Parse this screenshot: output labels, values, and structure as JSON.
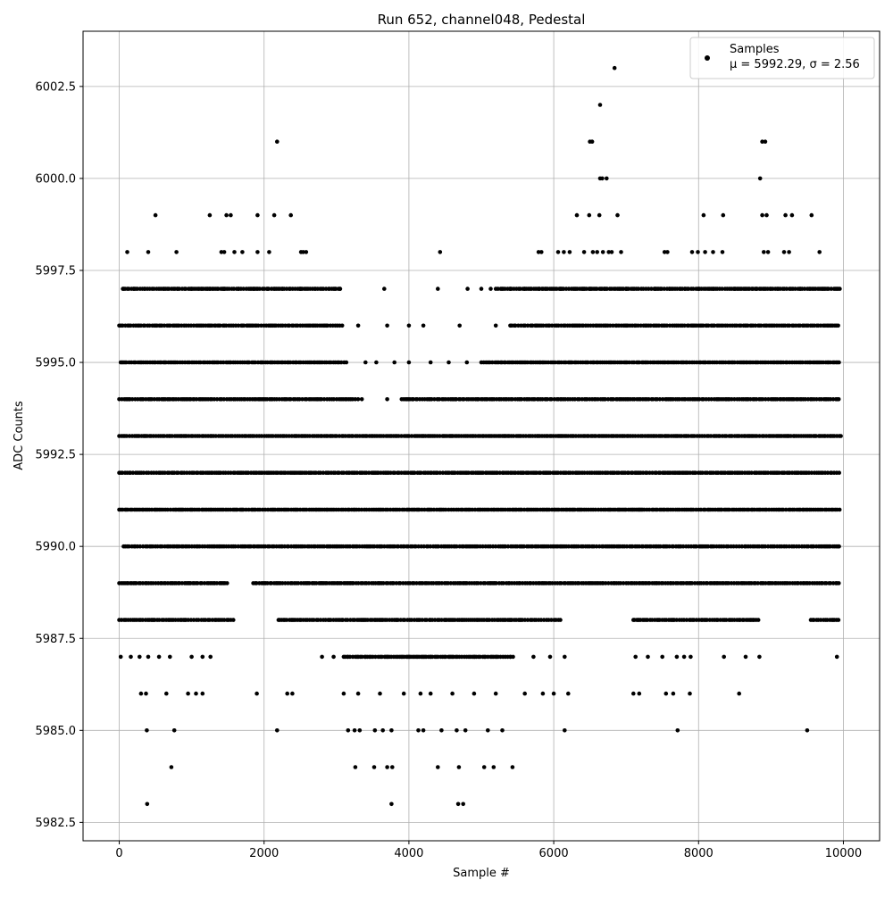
{
  "chart_data": {
    "type": "scatter",
    "title": "Run 652, channel048, Pedestal",
    "xlabel": "Sample #",
    "ylabel": "ADC Counts",
    "xlim": [
      -500,
      10500
    ],
    "ylim": [
      5982.0,
      6004.0
    ],
    "xticks": [
      0,
      2000,
      4000,
      6000,
      8000,
      10000
    ],
    "yticks": [
      5982.5,
      5985.0,
      5987.5,
      5990.0,
      5992.5,
      5995.0,
      5997.5,
      6000.0,
      6002.5
    ],
    "xtick_labels": [
      "0",
      "2000",
      "4000",
      "6000",
      "8000",
      "10000"
    ],
    "ytick_labels": [
      "5982.5",
      "5985.0",
      "5987.5",
      "5990.0",
      "5992.5",
      "5995.0",
      "5997.5",
      "6000.0",
      "6002.5"
    ],
    "grid": true,
    "legend": {
      "position": "top-right",
      "label": "Samples",
      "stats": "μ = 5992.29, σ = 2.56"
    },
    "marker_color": "#000000",
    "series": [
      {
        "name": "Samples",
        "points": [
          [
            500,
            5999
          ],
          [
            1250,
            5999
          ],
          [
            1480,
            5999
          ],
          [
            1540,
            5999
          ],
          [
            1910,
            5999
          ],
          [
            2140,
            5999
          ],
          [
            2370,
            5999
          ],
          [
            6320,
            5999
          ],
          [
            6490,
            5999
          ],
          [
            6630,
            5999
          ],
          [
            6880,
            5999
          ],
          [
            8070,
            5999
          ],
          [
            8340,
            5999
          ],
          [
            8880,
            5999
          ],
          [
            8940,
            5999
          ],
          [
            9200,
            5999
          ],
          [
            9290,
            5999
          ],
          [
            9560,
            5999
          ],
          [
            2180,
            6001
          ],
          [
            6500,
            6001
          ],
          [
            6530,
            6001
          ],
          [
            8880,
            6001
          ],
          [
            8920,
            6001
          ],
          [
            6640,
            6002
          ],
          [
            6840,
            6003
          ],
          [
            6640,
            6000
          ],
          [
            6670,
            6000
          ],
          [
            6730,
            6000
          ],
          [
            8850,
            6000
          ],
          [
            110,
            5998
          ],
          [
            400,
            5998
          ],
          [
            790,
            5998
          ],
          [
            1410,
            5998
          ],
          [
            1450,
            5998
          ],
          [
            1590,
            5998
          ],
          [
            1700,
            5998
          ],
          [
            1910,
            5998
          ],
          [
            2070,
            5998
          ],
          [
            2510,
            5998
          ],
          [
            2540,
            5998
          ],
          [
            2580,
            5998
          ],
          [
            4430,
            5998
          ],
          [
            5790,
            5998
          ],
          [
            5830,
            5998
          ],
          [
            6060,
            5998
          ],
          [
            6140,
            5998
          ],
          [
            6220,
            5998
          ],
          [
            6420,
            5998
          ],
          [
            6540,
            5998
          ],
          [
            6600,
            5998
          ],
          [
            6680,
            5998
          ],
          [
            6760,
            5998
          ],
          [
            6800,
            5998
          ],
          [
            6930,
            5998
          ],
          [
            7530,
            5998
          ],
          [
            7570,
            5998
          ],
          [
            7910,
            5998
          ],
          [
            7990,
            5998
          ],
          [
            8090,
            5998
          ],
          [
            8200,
            5998
          ],
          [
            8330,
            5998
          ],
          [
            8900,
            5998
          ],
          [
            8960,
            5998
          ],
          [
            9180,
            5998
          ],
          [
            9250,
            5998
          ],
          [
            9670,
            5998
          ],
          [
            385,
            5983
          ],
          [
            3760,
            5983
          ],
          [
            4680,
            5983
          ],
          [
            4750,
            5983
          ],
          [
            720,
            5984
          ],
          [
            3260,
            5984
          ],
          [
            3520,
            5984
          ],
          [
            3700,
            5984
          ],
          [
            3770,
            5984
          ],
          [
            4400,
            5984
          ],
          [
            4690,
            5984
          ],
          [
            5040,
            5984
          ],
          [
            5170,
            5984
          ],
          [
            5430,
            5984
          ],
          [
            380,
            5985
          ],
          [
            760,
            5985
          ],
          [
            2180,
            5985
          ],
          [
            3160,
            5985
          ],
          [
            3250,
            5985
          ],
          [
            3320,
            5985
          ],
          [
            3530,
            5985
          ],
          [
            3640,
            5985
          ],
          [
            3760,
            5985
          ],
          [
            4130,
            5985
          ],
          [
            4200,
            5985
          ],
          [
            4450,
            5985
          ],
          [
            4660,
            5985
          ],
          [
            4780,
            5985
          ],
          [
            5090,
            5985
          ],
          [
            5290,
            5985
          ],
          [
            6150,
            5985
          ],
          [
            7710,
            5985
          ],
          [
            9500,
            5985
          ],
          [
            300,
            5986
          ],
          [
            370,
            5986
          ],
          [
            650,
            5986
          ],
          [
            950,
            5986
          ],
          [
            1060,
            5986
          ],
          [
            1150,
            5986
          ],
          [
            1900,
            5986
          ],
          [
            2320,
            5986
          ],
          [
            2390,
            5986
          ],
          [
            3100,
            5986
          ],
          [
            3300,
            5986
          ],
          [
            3600,
            5986
          ],
          [
            3930,
            5986
          ],
          [
            4160,
            5986
          ],
          [
            4300,
            5986
          ],
          [
            4600,
            5986
          ],
          [
            4900,
            5986
          ],
          [
            5200,
            5986
          ],
          [
            5600,
            5986
          ],
          [
            5850,
            5986
          ],
          [
            6000,
            5986
          ],
          [
            6200,
            5986
          ],
          [
            7100,
            5986
          ],
          [
            7180,
            5986
          ],
          [
            7550,
            5986
          ],
          [
            7650,
            5986
          ],
          [
            7880,
            5986
          ],
          [
            8560,
            5986
          ],
          [
            20,
            5987
          ],
          [
            160,
            5987
          ],
          [
            280,
            5987
          ],
          [
            400,
            5987
          ],
          [
            550,
            5987
          ],
          [
            700,
            5987
          ],
          [
            1000,
            5987
          ],
          [
            1150,
            5987
          ],
          [
            1260,
            5987
          ],
          [
            2800,
            5987
          ],
          [
            2960,
            5987
          ],
          [
            3150,
            5987
          ],
          [
            3400,
            5987
          ],
          [
            3700,
            5987
          ],
          [
            4000,
            5987
          ],
          [
            4300,
            5987
          ],
          [
            4600,
            5987
          ],
          [
            4900,
            5987
          ],
          [
            5200,
            5987
          ],
          [
            5400,
            5987
          ],
          [
            5720,
            5987
          ],
          [
            5950,
            5987
          ],
          [
            6150,
            5987
          ],
          [
            7130,
            5987
          ],
          [
            7300,
            5987
          ],
          [
            7500,
            5987
          ],
          [
            7700,
            5987
          ],
          [
            7800,
            5987
          ],
          [
            7890,
            5987
          ],
          [
            8350,
            5987
          ],
          [
            8650,
            5987
          ],
          [
            8840,
            5987
          ],
          [
            9910,
            5987
          ],
          [
            7810,
            5997
          ],
          [
            3660,
            5997
          ],
          [
            4400,
            5997
          ],
          [
            4810,
            5997
          ],
          [
            5130,
            5997
          ],
          [
            5400,
            5997
          ],
          [
            5800,
            5997
          ],
          [
            6100,
            5997
          ],
          [
            6400,
            5997
          ],
          [
            6700,
            5997
          ],
          [
            7000,
            5997
          ],
          [
            7400,
            5997
          ],
          [
            7600,
            5997
          ],
          [
            8200,
            5997
          ],
          [
            8500,
            5997
          ],
          [
            8800,
            5997
          ],
          [
            9100,
            5997
          ],
          [
            9400,
            5997
          ],
          [
            9700,
            5997
          ],
          [
            9950,
            5997
          ],
          [
            50,
            5997
          ],
          [
            200,
            5997
          ],
          [
            350,
            5997
          ],
          [
            620,
            5997
          ],
          [
            800,
            5997
          ],
          [
            1000,
            5997
          ],
          [
            1250,
            5997
          ],
          [
            1450,
            5997
          ],
          [
            1650,
            5997
          ],
          [
            1850,
            5997
          ],
          [
            2050,
            5997
          ],
          [
            2250,
            5997
          ],
          [
            2500,
            5997
          ],
          [
            2700,
            5997
          ],
          [
            2900,
            5997
          ],
          [
            3050,
            5997
          ],
          [
            5000,
            5997
          ],
          [
            5600,
            5997
          ],
          [
            6500,
            5997
          ],
          [
            8000,
            5997
          ],
          [
            9000,
            5997
          ],
          [
            3300,
            5996
          ],
          [
            3700,
            5996
          ],
          [
            4000,
            5996
          ],
          [
            4200,
            5996
          ],
          [
            4700,
            5996
          ],
          [
            5200,
            5996
          ],
          [
            5700,
            5996
          ],
          [
            3400,
            5995
          ],
          [
            3550,
            5995
          ],
          [
            3800,
            5995
          ],
          [
            4000,
            5995
          ],
          [
            4300,
            5995
          ],
          [
            4550,
            5995
          ],
          [
            4800,
            5995
          ],
          [
            3350,
            5994
          ],
          [
            3700,
            5994
          ],
          [
            4050,
            5994
          ],
          [
            4400,
            5994
          ],
          [
            4650,
            5994
          ],
          [
            4950,
            5994
          ],
          [
            5250,
            5994
          ]
        ]
      }
    ],
    "dense_levels": [
      {
        "level": 5997,
        "ranges": [
          [
            60,
            3050
          ],
          [
            5200,
            9950
          ]
        ]
      },
      {
        "level": 5996,
        "ranges": [
          [
            0,
            3100
          ],
          [
            5400,
            9950
          ]
        ]
      },
      {
        "level": 5995,
        "ranges": [
          [
            20,
            3150
          ],
          [
            5000,
            9950
          ]
        ]
      },
      {
        "level": 5994,
        "ranges": [
          [
            0,
            3300
          ],
          [
            3900,
            9950
          ]
        ]
      },
      {
        "level": 5993,
        "ranges": [
          [
            0,
            9980
          ]
        ]
      },
      {
        "level": 5992,
        "ranges": [
          [
            0,
            9980
          ]
        ]
      },
      {
        "level": 5991,
        "ranges": [
          [
            0,
            9950
          ]
        ]
      },
      {
        "level": 5990,
        "ranges": [
          [
            60,
            9950
          ]
        ]
      },
      {
        "level": 5989,
        "ranges": [
          [
            0,
            1500
          ],
          [
            1850,
            9950
          ]
        ]
      },
      {
        "level": 5988,
        "ranges": [
          [
            0,
            1600
          ],
          [
            2200,
            6100
          ],
          [
            7100,
            8850
          ],
          [
            9550,
            9950
          ]
        ]
      },
      {
        "level": 5987,
        "ranges": [
          [
            3100,
            5450
          ]
        ]
      }
    ]
  }
}
